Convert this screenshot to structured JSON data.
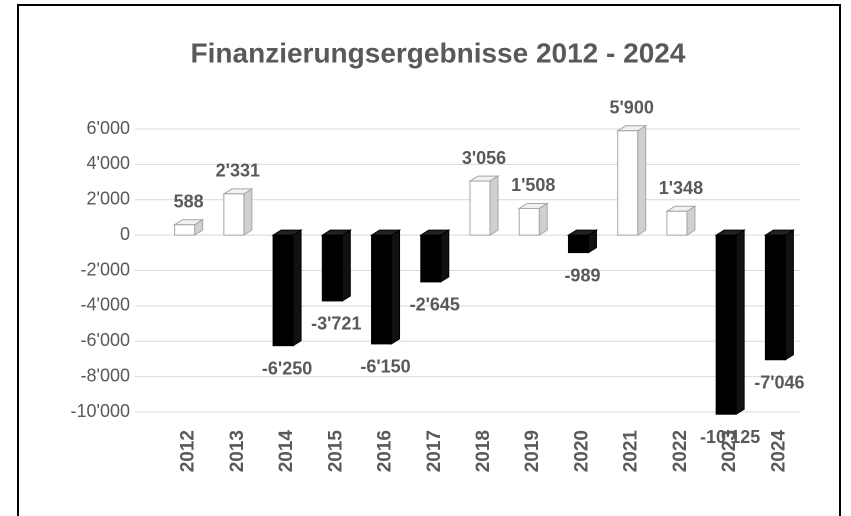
{
  "chart_data": {
    "type": "bar",
    "title": "Finanzierungsergebnisse 2012 - 2024",
    "categories": [
      "2012",
      "2013",
      "2014",
      "2015",
      "2016",
      "2017",
      "2018",
      "2019",
      "2020",
      "2021",
      "2022",
      "2023",
      "2024"
    ],
    "values": [
      588,
      2331,
      -6250,
      -3721,
      -6150,
      -2645,
      3056,
      1508,
      -989,
      5900,
      1348,
      -10125,
      -7046
    ],
    "value_labels": [
      "588",
      "2'331",
      "-6'250",
      "-3'721",
      "-6'150",
      "-2'645",
      "3'056",
      "1'508",
      "-989",
      "5'900",
      "1'348",
      "-10'125",
      "-7'046"
    ],
    "colors": {
      "positive": "#ffffff",
      "negative": "#000000"
    },
    "ylim": [
      -10000,
      6000
    ],
    "yticks": [
      {
        "value": 6000,
        "label": "6'000"
      },
      {
        "value": 4000,
        "label": "4'000"
      },
      {
        "value": 2000,
        "label": "2'000"
      },
      0,
      {
        "value": -2000,
        "label": "-2'000"
      },
      {
        "value": -4000,
        "label": "-4'000"
      },
      {
        "value": -6000,
        "label": "-6'000"
      },
      {
        "value": -8000,
        "label": "-8'000"
      },
      {
        "value": -10000,
        "label": "-10'000"
      }
    ],
    "grid": true
  }
}
